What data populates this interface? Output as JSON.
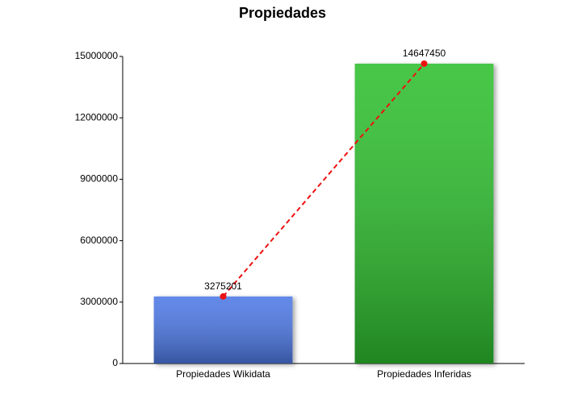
{
  "chart_data": {
    "type": "bar",
    "title": "Propiedades",
    "categories": [
      "Propiedades Wikidata",
      "Propiedades Inferidas"
    ],
    "values": [
      3275201,
      14647450
    ],
    "colors": [
      "#4d79e6",
      "#2fbf2f"
    ],
    "ylim": [
      0,
      15000000
    ],
    "yticks": [
      0,
      3000000,
      6000000,
      9000000,
      12000000,
      15000000
    ],
    "grid": false,
    "overlay_line": {
      "color": "#ee1111",
      "dashed": true
    }
  }
}
